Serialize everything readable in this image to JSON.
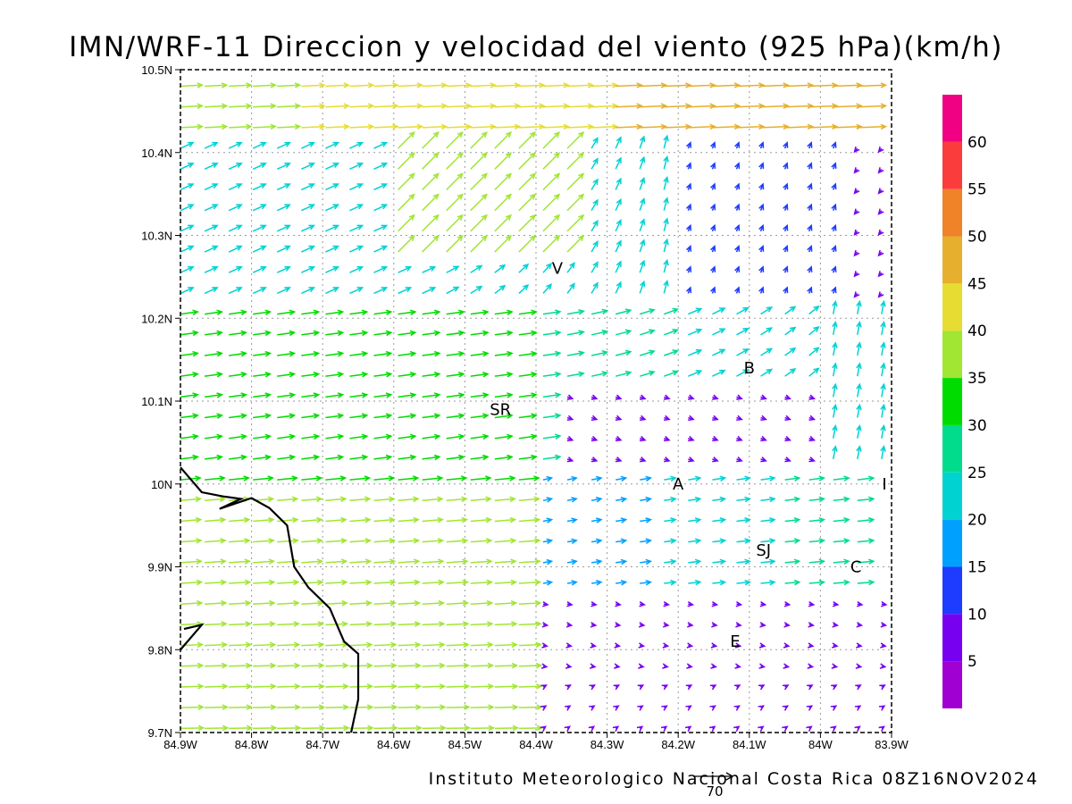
{
  "title": "IMN/WRF-11 Direccion y velocidad del viento (925 hPa)(km/h)",
  "footer": "Instituto Meteorologico Nacional Costa Rica 08Z16NOV2024",
  "reference_vector": {
    "label": "70",
    "speed": 70
  },
  "map": {
    "lon_range": [
      -84.9,
      -83.9
    ],
    "lat_range": [
      9.7,
      10.5
    ],
    "x_ticks": [
      {
        "lon": -84.9,
        "label": "84.9W"
      },
      {
        "lon": -84.8,
        "label": "84.8W"
      },
      {
        "lon": -84.7,
        "label": "84.7W"
      },
      {
        "lon": -84.6,
        "label": "84.6W"
      },
      {
        "lon": -84.5,
        "label": "84.5W"
      },
      {
        "lon": -84.4,
        "label": "84.4W"
      },
      {
        "lon": -84.3,
        "label": "84.3W"
      },
      {
        "lon": -84.2,
        "label": "84.2W"
      },
      {
        "lon": -84.1,
        "label": "84.1W"
      },
      {
        "lon": -84.0,
        "label": "84W"
      },
      {
        "lon": -83.9,
        "label": "83.9W"
      }
    ],
    "y_ticks": [
      {
        "lat": 10.5,
        "label": "10.5N"
      },
      {
        "lat": 10.4,
        "label": "10.4N"
      },
      {
        "lat": 10.3,
        "label": "10.3N"
      },
      {
        "lat": 10.2,
        "label": "10.2N"
      },
      {
        "lat": 10.1,
        "label": "10.1N"
      },
      {
        "lat": 10.0,
        "label": "10N"
      },
      {
        "lat": 9.9,
        "label": "9.9N"
      },
      {
        "lat": 9.8,
        "label": "9.8N"
      },
      {
        "lat": 9.7,
        "label": "9.7N"
      }
    ],
    "places": [
      {
        "name": "V",
        "lon": -84.37,
        "lat": 10.26
      },
      {
        "name": "B",
        "lon": -84.1,
        "lat": 10.14
      },
      {
        "name": "SR",
        "lon": -84.45,
        "lat": 10.09
      },
      {
        "name": "A",
        "lon": -84.2,
        "lat": 10.0
      },
      {
        "name": "I",
        "lon": -83.91,
        "lat": 10.0
      },
      {
        "name": "SJ",
        "lon": -84.08,
        "lat": 9.92
      },
      {
        "name": "C",
        "lon": -83.95,
        "lat": 9.9
      },
      {
        "name": "E",
        "lon": -84.12,
        "lat": 9.81
      }
    ],
    "coastline": [
      [
        -84.9,
        10.02
      ],
      [
        -84.87,
        9.99
      ],
      [
        -84.84,
        9.985
      ],
      [
        -84.815,
        9.982
      ],
      [
        -84.845,
        9.97
      ],
      [
        -84.8,
        9.983
      ],
      [
        -84.775,
        9.971
      ],
      [
        -84.75,
        9.95
      ],
      [
        -84.74,
        9.9
      ],
      [
        -84.72,
        9.875
      ],
      [
        -84.69,
        9.85
      ],
      [
        -84.67,
        9.81
      ],
      [
        -84.65,
        9.795
      ],
      [
        -84.65,
        9.74
      ],
      [
        -84.66,
        9.7
      ]
    ],
    "coastline2": [
      [
        -84.9,
        9.8
      ],
      [
        -84.87,
        9.83
      ],
      [
        -84.895,
        9.825
      ]
    ]
  },
  "colorbar": {
    "levels": [
      {
        "label": "",
        "color": "#a000d2"
      },
      {
        "label": "5",
        "color": "#7800f0"
      },
      {
        "label": "10",
        "color": "#1e3cff"
      },
      {
        "label": "15",
        "color": "#00a0ff"
      },
      {
        "label": "20",
        "color": "#00d2d2"
      },
      {
        "label": "25",
        "color": "#00dc8c"
      },
      {
        "label": "30",
        "color": "#00dc00"
      },
      {
        "label": "35",
        "color": "#a0e632"
      },
      {
        "label": "40",
        "color": "#e6dc32"
      },
      {
        "label": "45",
        "color": "#e6af2d"
      },
      {
        "label": "50",
        "color": "#f08228"
      },
      {
        "label": "55",
        "color": "#fa3c3c"
      },
      {
        "label": "60",
        "color": "#f00082"
      }
    ]
  }
}
